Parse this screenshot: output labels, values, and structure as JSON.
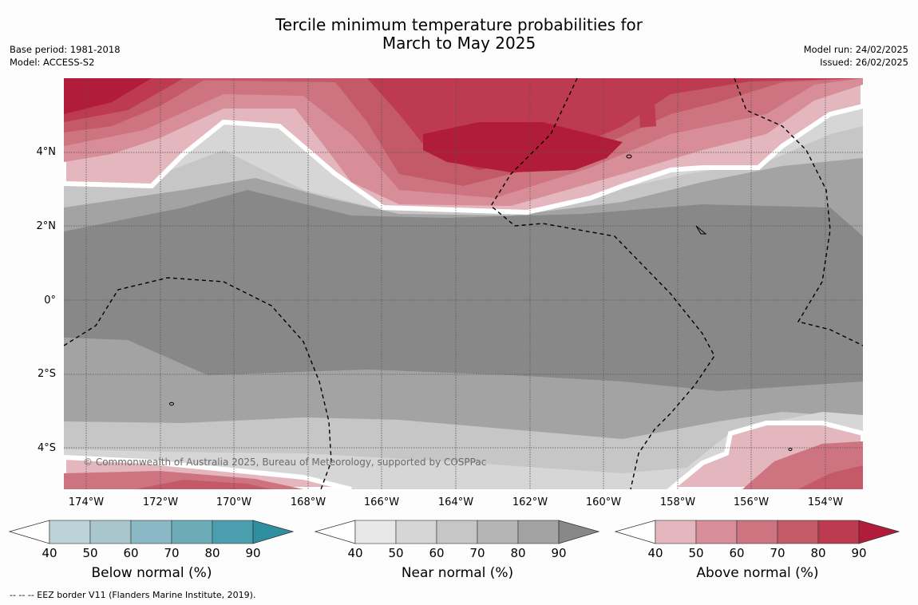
{
  "title": {
    "line1": "Tercile minimum temperature probabilities for",
    "line2": "March to May 2025"
  },
  "meta_left": {
    "base_period": "Base period: 1981-2018",
    "model": "Model: ACCESS-S2"
  },
  "meta_right": {
    "model_run": "Model run: 24/02/2025",
    "issued": "Issued: 26/02/2025"
  },
  "map": {
    "lat_labels": [
      "4°N",
      "2°N",
      "0°",
      "2°S",
      "4°S"
    ],
    "lon_labels": [
      "174°W",
      "172°W",
      "170°W",
      "168°W",
      "166°W",
      "164°W",
      "162°W",
      "160°W",
      "158°W",
      "156°W",
      "154°W"
    ],
    "copyright": "© Commonwealth of Australia 2025, Bureau of Meteorology, supported by COSPPac",
    "colors": {
      "near": [
        "#e8e8e8",
        "#d6d6d6",
        "#c6c6c6",
        "#b5b5b5",
        "#a3a3a3",
        "#888888"
      ],
      "above": [
        "#e3b7bd",
        "#d88e98",
        "#cd7480",
        "#c45a68",
        "#bd3a51",
        "#b01c3a"
      ],
      "below": [
        "#bcd3d9",
        "#a8c6cc",
        "#8ab8c4",
        "#6cacb9",
        "#4b9eae",
        "#2f8fa1"
      ]
    }
  },
  "colorbars": {
    "ticks": [
      "40",
      "50",
      "60",
      "70",
      "80",
      "90"
    ],
    "below_title": "Below normal (%)",
    "near_title": "Near normal (%)",
    "above_title": "Above normal (%)"
  },
  "footnote": "--  --  -- EEZ border V11 (Flanders Marine Institute, 2019)."
}
